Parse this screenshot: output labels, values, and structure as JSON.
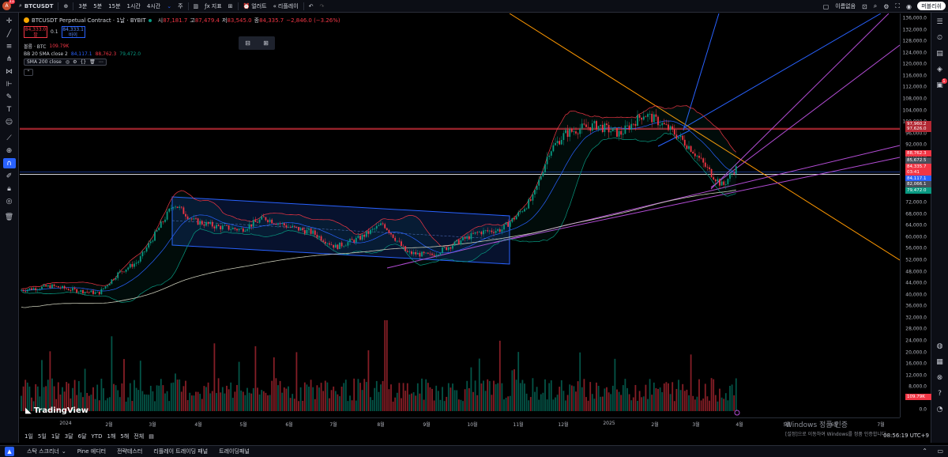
{
  "topbar": {
    "avatar_letter": "A",
    "avatar_badge": "11",
    "symbol": "BTCUSDT",
    "intervals": [
      "3분",
      "5분",
      "15분",
      "1시간",
      "4시간",
      "주"
    ],
    "indicators_label": "지표",
    "alert_label": "얼러트",
    "replay_label": "리플레이",
    "layout_name": "이름없음",
    "publish_label": "퍼블리쉬"
  },
  "legend": {
    "title": "BTCUSDT Perpetual Contract · 1날 · BYBIT",
    "open_label": "시",
    "open": "87,181.7",
    "high_label": "고",
    "high": "87,479.4",
    "low_label": "저",
    "low": "83,545.0",
    "close_label": "종",
    "close": "84,335.7",
    "change": "−2,846.0 (−3.26%)",
    "sell_price": "84,333.0",
    "sell_label": "팔",
    "spread": "0.1",
    "buy_price": "84,333.1",
    "buy_label": "바이",
    "volume_label": "볼륨 · BTC",
    "volume_value": "109.79K",
    "bb_label": "BB 20 SMA close 2",
    "bb_mid": "84,117.1",
    "bb_upper": "88,762.3",
    "bb_lower": "79,472.0",
    "sma_label": "SMA 200 close"
  },
  "price_axis": {
    "ticks": [
      "136,000.0",
      "132,000.0",
      "128,000.0",
      "124,000.0",
      "120,000.0",
      "116,000.0",
      "112,000.0",
      "108,000.0",
      "104,000.0",
      "100,000.0",
      "96,000.0",
      "92,000.0",
      "88,000.0",
      "84,000.0",
      "80,000.0",
      "76,000.0",
      "72,000.0",
      "68,000.0",
      "64,000.0",
      "60,000.0",
      "56,000.0",
      "52,000.0",
      "48,000.0",
      "44,000.0",
      "40,000.0",
      "36,000.0",
      "32,000.0",
      "28,000.0",
      "24,000.0",
      "20,000.0",
      "16,000.0",
      "12,000.0",
      "8,000.0",
      "4,000.0",
      "0.0"
    ],
    "labels": [
      {
        "text": "97,960.2",
        "color": "#b22833"
      },
      {
        "text": "97,626.0",
        "color": "#b22833"
      },
      {
        "text": "88,762.3",
        "color": "#f23645"
      },
      {
        "text": "85,672.5",
        "color": "#4a4e5a"
      },
      {
        "text": "84,335.7",
        "color": "#f23645"
      },
      {
        "text": "03:41",
        "color": "#f23645"
      },
      {
        "text": "84,117.1",
        "color": "#2962ff"
      },
      {
        "text": "82,066.1",
        "color": "#4a4e5a"
      },
      {
        "text": "79,472.0",
        "color": "#089981"
      },
      {
        "text": "109.79K",
        "color": "#f23645"
      }
    ]
  },
  "time_axis": {
    "ticks": [
      "2024",
      "2월",
      "3월",
      "4월",
      "5월",
      "6월",
      "7월",
      "8월",
      "9월",
      "10월",
      "11월",
      "12월",
      "2025",
      "2월",
      "3월",
      "4월",
      "5월",
      "6월",
      "7월"
    ]
  },
  "branding": {
    "logo": "TradingView"
  },
  "watermark": {
    "line1": "Windows 정품 인증",
    "line2": "[설정]으로 이동하여 Windows를 정품 인증합니다."
  },
  "range_bar": {
    "items": [
      "1일",
      "5일",
      "1달",
      "3달",
      "6달",
      "YTD",
      "1해",
      "5해",
      "전체"
    ],
    "clock": "08:56:19 UTC+9"
  },
  "bottom_bar": {
    "items": [
      "스탁 스크리너",
      "Pine 에디터",
      "전략테스터",
      "리플레이 트레이딩 패널",
      "트레이딩패널"
    ]
  },
  "colors": {
    "up": "#089981",
    "down": "#f23645",
    "bb": "#f23645",
    "bb_mid": "#2962ff",
    "sma": "#c9cbb8",
    "channel": "#2962ff",
    "trend_orange": "#ff9800",
    "trend_purple": "#b44dd6",
    "accent": "#2962ff"
  }
}
